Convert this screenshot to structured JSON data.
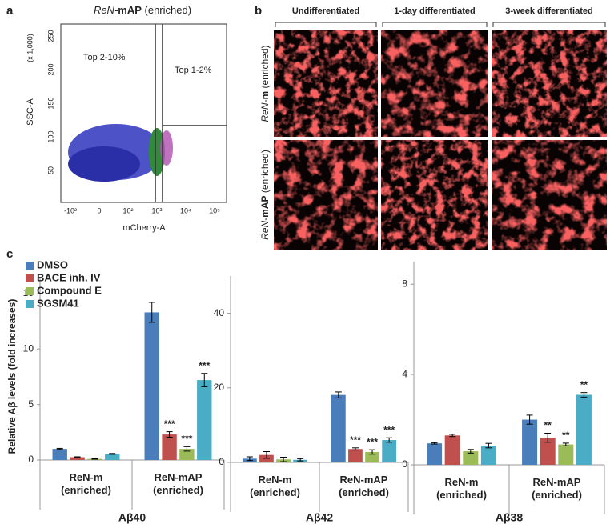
{
  "panel_a": {
    "label": "a",
    "title_italic": "ReN-",
    "title_bold": "mAP",
    "title_rest": " (enriched)",
    "gate_left": "Top 2-10%",
    "gate_right": "Top 1-2%",
    "ylabel": "SSC-A",
    "yunit": "(x 1,000)",
    "xlabel": "mCherry-A",
    "yticks": [
      "250",
      "200",
      "150",
      "100",
      "50"
    ],
    "xticks": [
      "-10²",
      "0",
      "10²",
      "10³",
      "10⁴",
      "10⁵"
    ]
  },
  "panel_b": {
    "label": "b",
    "columns": [
      "Undifferentiated",
      "1-day differentiated",
      "3-week differentiated"
    ],
    "rows": [
      {
        "italic": "ReN-",
        "bold": "m",
        "rest": " (enriched)"
      },
      {
        "italic": "ReN-",
        "bold": "mAP",
        "rest": " (enriched)"
      }
    ]
  },
  "panel_c": {
    "label": "c"
  },
  "chart_data": [
    {
      "type": "bar",
      "title": "Aβ40",
      "ylabel": "Relative Aβ levels (fold increases)",
      "legend": "upper left",
      "categories": [
        "ReN-m\n(enriched)",
        "ReN-mAP\n(enriched)"
      ],
      "ylim": [
        0,
        16.5
      ],
      "yticks": [
        0,
        5,
        10,
        15
      ],
      "series": [
        {
          "name": "DMSO",
          "color": "#4a7ebb",
          "values": [
            1.0,
            13.3
          ],
          "errors": [
            0.05,
            0.9
          ],
          "significance": [
            null,
            null
          ]
        },
        {
          "name": "BACE inh. IV",
          "color": "#c0504d",
          "values": [
            0.25,
            2.3
          ],
          "errors": [
            0.04,
            0.25
          ],
          "significance": [
            null,
            "***"
          ]
        },
        {
          "name": "Compound E",
          "color": "#9bbb59",
          "values": [
            0.1,
            1.0
          ],
          "errors": [
            0.03,
            0.2
          ],
          "significance": [
            null,
            "***"
          ]
        },
        {
          "name": "SGSM41",
          "color": "#4bacc6",
          "values": [
            0.55,
            7.2
          ],
          "errors": [
            0.04,
            0.6
          ],
          "significance": [
            null,
            "***"
          ]
        }
      ]
    },
    {
      "type": "bar",
      "title": "Aβ42",
      "categories": [
        "ReN-m\n(enriched)",
        "ReN-mAP\n(enriched)"
      ],
      "ylim": [
        0,
        50
      ],
      "yticks": [
        0,
        20,
        40
      ],
      "series": [
        {
          "color": "#4a7ebb",
          "values": [
            1.0,
            18.1
          ],
          "errors": [
            0.5,
            0.8
          ],
          "significance": [
            null,
            null
          ]
        },
        {
          "color": "#c0504d",
          "values": [
            2.0,
            3.6
          ],
          "errors": [
            0.9,
            0.3
          ],
          "significance": [
            null,
            "***"
          ]
        },
        {
          "color": "#9bbb59",
          "values": [
            0.8,
            2.8
          ],
          "errors": [
            0.6,
            0.6
          ],
          "significance": [
            null,
            "***"
          ]
        },
        {
          "color": "#4bacc6",
          "values": [
            0.7,
            6.0
          ],
          "errors": [
            0.3,
            0.6
          ],
          "significance": [
            null,
            "***"
          ]
        }
      ]
    },
    {
      "type": "bar",
      "title": "Aβ38",
      "categories": [
        "ReN-m\n(enriched)",
        "ReN-mAP\n(enriched)"
      ],
      "ylim": [
        0,
        9
      ],
      "yticks": [
        0,
        4,
        8
      ],
      "series": [
        {
          "color": "#4a7ebb",
          "values": [
            0.95,
            2.0
          ],
          "errors": [
            0.03,
            0.2
          ],
          "significance": [
            null,
            null
          ]
        },
        {
          "color": "#c0504d",
          "values": [
            1.3,
            1.2
          ],
          "errors": [
            0.05,
            0.2
          ],
          "significance": [
            null,
            "**"
          ]
        },
        {
          "color": "#9bbb59",
          "values": [
            0.6,
            0.9
          ],
          "errors": [
            0.08,
            0.06
          ],
          "significance": [
            null,
            "**"
          ]
        },
        {
          "color": "#4bacc6",
          "values": [
            0.85,
            3.1
          ],
          "errors": [
            0.1,
            0.1
          ],
          "significance": [
            null,
            "**"
          ]
        }
      ]
    }
  ]
}
